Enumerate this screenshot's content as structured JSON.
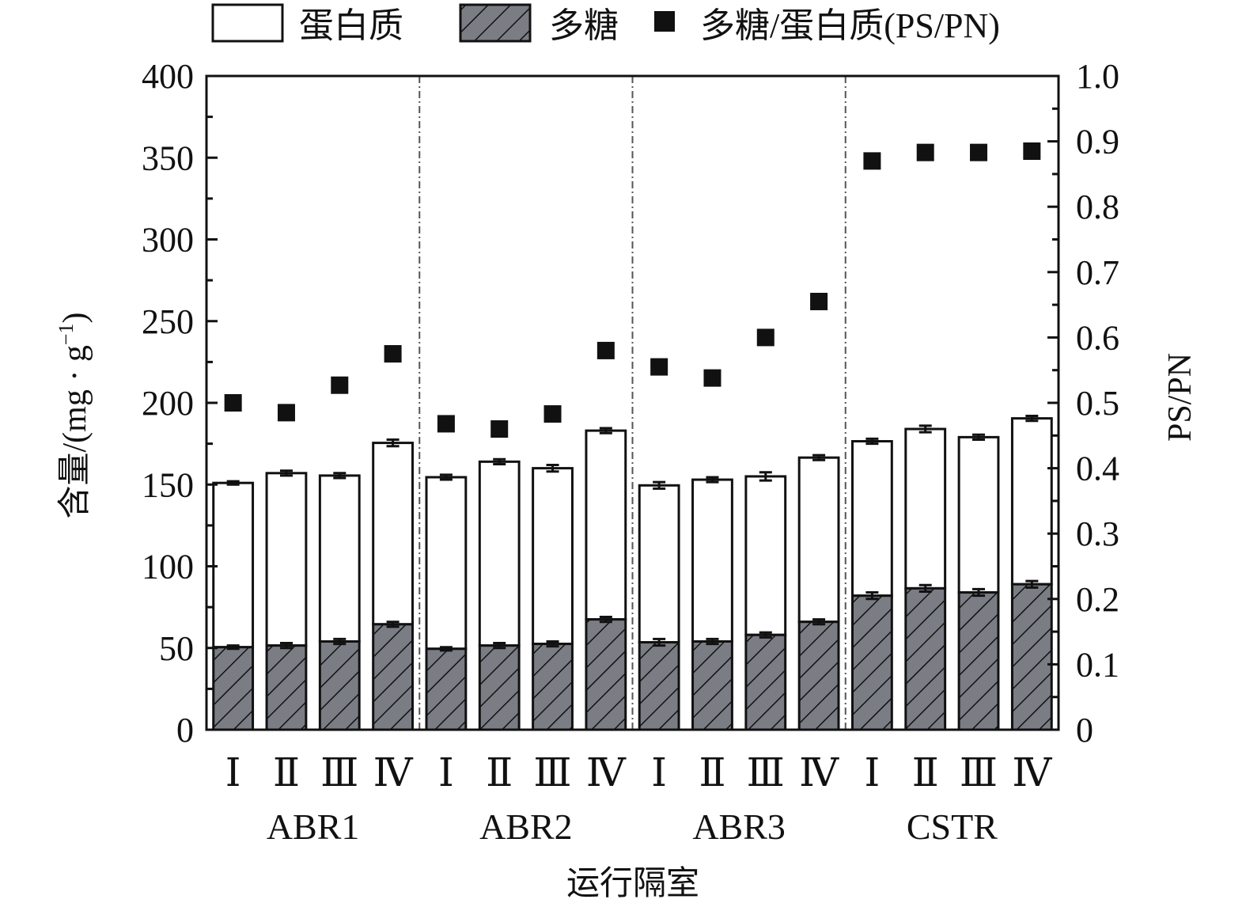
{
  "chart_data": {
    "type": "bar",
    "stacked": true,
    "legend": {
      "placement": "top",
      "items": [
        {
          "label": "蛋白质",
          "marker": "open-rect"
        },
        {
          "label": "多糖",
          "marker": "hatched-rect"
        },
        {
          "label": "多糖/蛋白质(PS/PN)",
          "marker": "filled-square"
        }
      ]
    },
    "xlabel": "运行隔室",
    "ylabel": "含量/(mg · g⁻¹)",
    "ylabel_parts": {
      "main": "含量/(mg · g",
      "sup": "−1",
      "end": ")"
    },
    "y2label": "PS/PN",
    "ylim": [
      0,
      400
    ],
    "y2lim": [
      0,
      1.0
    ],
    "yticks": [
      "0",
      "50",
      "100",
      "150",
      "200",
      "250",
      "300",
      "350",
      "400"
    ],
    "y2ticks": [
      "0",
      "0.1",
      "0.2",
      "0.3",
      "0.4",
      "0.5",
      "0.6",
      "0.7",
      "0.8",
      "0.9",
      "1.0"
    ],
    "groups": [
      "ABR1",
      "ABR2",
      "ABR3",
      "CSTR"
    ],
    "compartments": [
      "Ⅰ",
      "Ⅱ",
      "Ⅲ",
      "Ⅳ"
    ],
    "series": [
      {
        "name": "多糖",
        "values": [
          50.5,
          51.5,
          54,
          64.5,
          49.5,
          51.5,
          52.5,
          67.5,
          53.5,
          54,
          58,
          66,
          82,
          86.5,
          84,
          89
        ],
        "errors": [
          1,
          1.5,
          1.5,
          1.5,
          1,
          1.5,
          1.5,
          1.5,
          2,
          1.5,
          1.5,
          1.5,
          2,
          2,
          2,
          2
        ]
      },
      {
        "name": "蛋白质",
        "totals": [
          151,
          157,
          155.5,
          175.5,
          154.5,
          164,
          160,
          183,
          149.5,
          153,
          155,
          166.5,
          176.5,
          184,
          179,
          190.5
        ],
        "errors": [
          1,
          1.5,
          1.5,
          2,
          1.5,
          1.5,
          2,
          1.5,
          2,
          1.5,
          2.5,
          1.5,
          1.5,
          2,
          1.5,
          1.5
        ]
      },
      {
        "name": "多糖/蛋白质(PS/PN)",
        "axis": "right",
        "values": [
          0.5,
          0.485,
          0.527,
          0.575,
          0.468,
          0.46,
          0.483,
          0.58,
          0.555,
          0.538,
          0.6,
          0.655,
          0.87,
          0.883,
          0.883,
          0.885
        ]
      }
    ]
  }
}
